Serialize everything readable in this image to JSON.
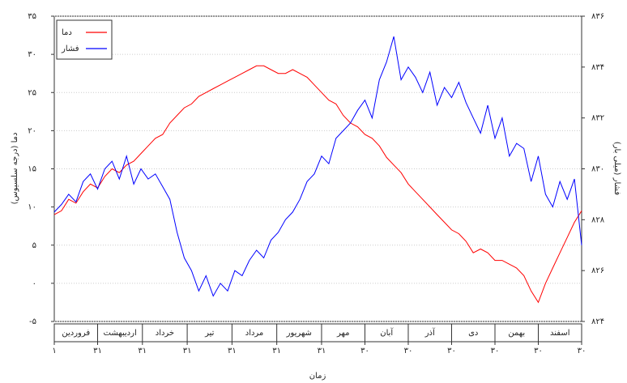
{
  "chart_data": {
    "type": "line",
    "x_label": "زمان",
    "y_label": "دما (درجه سلسیوس)",
    "y2_label": "فشار (میلی بار)",
    "x": [
      1,
      6,
      11,
      16,
      21,
      26,
      31,
      36,
      41,
      46,
      51,
      56,
      61,
      66,
      71,
      76,
      81,
      86,
      91,
      96,
      101,
      106,
      111,
      116,
      121,
      126,
      131,
      136,
      141,
      146,
      151,
      156,
      161,
      166,
      171,
      176,
      181,
      186,
      191,
      196,
      201,
      206,
      211,
      216,
      221,
      226,
      231,
      236,
      241,
      246,
      251,
      256,
      261,
      266,
      271,
      276,
      281,
      286,
      291,
      296,
      301,
      306,
      311,
      316,
      321,
      326,
      331,
      336,
      341,
      346,
      351,
      356,
      361,
      366
    ],
    "series": [
      {
        "name": "دما",
        "color": "#ff0000",
        "values": [
          9,
          9.5,
          11,
          10.5,
          12,
          13,
          12.5,
          14,
          15,
          14.5,
          15.5,
          16,
          17,
          18,
          19,
          19.5,
          21,
          22,
          23,
          23.5,
          24.5,
          25,
          25.5,
          26,
          26.5,
          27,
          27.5,
          28,
          28.5,
          28.5,
          28,
          27.5,
          27.5,
          28,
          27.5,
          27,
          26,
          25,
          24,
          23.5,
          22,
          21,
          20.5,
          19.5,
          19,
          18,
          16.5,
          15.5,
          14.5,
          13,
          12,
          11,
          10,
          9,
          8,
          7,
          6.5,
          5.5,
          4,
          4.5,
          4,
          3,
          3,
          2.5,
          2,
          1,
          -1,
          -2.5,
          0,
          2,
          4,
          6,
          8,
          9.5
        ]
      },
      {
        "name": "فشار",
        "color": "#0000ff",
        "axis": "y2",
        "values": [
          828.3,
          828.6,
          829,
          828.7,
          829.5,
          829.8,
          829.2,
          830,
          830.3,
          829.6,
          830.5,
          829.4,
          830,
          829.6,
          829.8,
          829.3,
          828.8,
          827.5,
          826.5,
          826,
          825.2,
          825.8,
          825,
          825.5,
          825.2,
          826,
          825.8,
          826.4,
          826.8,
          826.5,
          827.2,
          827.5,
          828,
          828.3,
          828.8,
          829.5,
          829.8,
          830.5,
          830.2,
          831.2,
          831.5,
          831.8,
          832.3,
          832.7,
          832,
          833.5,
          834.2,
          835.2,
          833.5,
          834,
          833.6,
          833,
          833.8,
          832.5,
          833.2,
          832.8,
          833.4,
          832.6,
          832,
          831.4,
          832.5,
          831.2,
          832,
          830.5,
          831,
          830.8,
          829.5,
          830.5,
          829,
          828.5,
          829.5,
          828.8,
          829.6,
          827
        ]
      }
    ],
    "xlim": [
      1,
      366
    ],
    "xticks": [
      {
        "value": 1,
        "label": "۱"
      },
      {
        "value": 31,
        "label": "۳۱"
      },
      {
        "value": 62,
        "label": "۳۱"
      },
      {
        "value": 93,
        "label": "۳۱"
      },
      {
        "value": 124,
        "label": "۳۱"
      },
      {
        "value": 155,
        "label": "۳۱"
      },
      {
        "value": 186,
        "label": "۳۱"
      },
      {
        "value": 216,
        "label": "۳۰"
      },
      {
        "value": 246,
        "label": "۳۰"
      },
      {
        "value": 276,
        "label": "۳۰"
      },
      {
        "value": 306,
        "label": "۳۰"
      },
      {
        "value": 336,
        "label": "۳۰"
      },
      {
        "value": 366,
        "label": "۳۰"
      }
    ],
    "months": [
      "فروردین",
      "اردیبهشت",
      "خرداد",
      "تیر",
      "مرداد",
      "شهریور",
      "مهر",
      "آبان",
      "آذر",
      "دی",
      "بهمن",
      "اسفند"
    ],
    "ylim": [
      -5,
      35
    ],
    "yticks": [
      {
        "value": -5,
        "label": "-۵"
      },
      {
        "value": 0,
        "label": "۰"
      },
      {
        "value": 5,
        "label": "۵"
      },
      {
        "value": 10,
        "label": "۱۰"
      },
      {
        "value": 15,
        "label": "۱۵"
      },
      {
        "value": 20,
        "label": "۲۰"
      },
      {
        "value": 25,
        "label": "۲۵"
      },
      {
        "value": 30,
        "label": "۳۰"
      },
      {
        "value": 35,
        "label": "۳۵"
      }
    ],
    "y2lim": [
      824,
      836
    ],
    "y2ticks": [
      {
        "value": 824,
        "label": "۸۲۴"
      },
      {
        "value": 826,
        "label": "۸۲۶"
      },
      {
        "value": 828,
        "label": "۸۲۸"
      },
      {
        "value": 830,
        "label": "۸۳۰"
      },
      {
        "value": 832,
        "label": "۸۳۲"
      },
      {
        "value": 834,
        "label": "۸۳۴"
      },
      {
        "value": 836,
        "label": "۸۳۶"
      }
    ],
    "grid": true,
    "legend": "upper left"
  }
}
